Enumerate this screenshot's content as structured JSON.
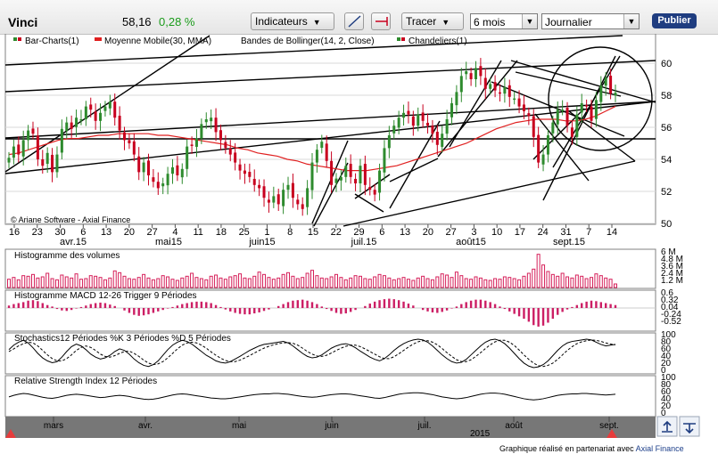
{
  "toolbar": {
    "stock_name": "Vinci",
    "price": "58,16",
    "change": "0,28 %",
    "change_color": "#1a9b1a",
    "indicators_label": "Indicateurs",
    "tracer_label": "Tracer",
    "period_value": "6 mois",
    "interval_value": "Journalier",
    "publish_label": "Publier"
  },
  "legend": {
    "bar_charts": "Bar-Charts(1)",
    "moving_average": "Moyenne Mobile(30, MMA)",
    "bollinger": "Bandes de Bollinger(14, 2, Close)",
    "candlesticks": "Chandeliers(1)",
    "copyright": "© Ariane Software - Axial Finance"
  },
  "colors": {
    "up": "#2e8b2e",
    "down": "#c8001e",
    "ma": "#e02020",
    "volume": "#d6205a",
    "macd": "#cc1e64",
    "grid": "#d8d8d8",
    "navigator_bg": "#777777",
    "navigator_marker": "#e63c3c"
  },
  "chart_data": [
    {
      "type": "candlestick",
      "title": "Vinci",
      "ylim": [
        50,
        61
      ],
      "y_ticks": [
        "60",
        "58",
        "56",
        "54",
        "52",
        "50"
      ],
      "x_day_ticks": [
        "16",
        "23",
        "30",
        "6",
        "13",
        "20",
        "27",
        "4",
        "11",
        "18",
        "25",
        "1",
        "8",
        "15",
        "22",
        "29",
        "6",
        "13",
        "20",
        "27",
        "3",
        "10",
        "17",
        "24",
        "31",
        "7",
        "14"
      ],
      "x_month_labels": [
        "avr.15",
        "mai15",
        "juin15",
        "juil.15",
        "août15",
        "sept.15"
      ],
      "close": [
        54.1,
        54.8,
        54.3,
        55.2,
        55.8,
        55.6,
        54.0,
        53.6,
        54.4,
        53.2,
        54.3,
        55.9,
        56.3,
        55.9,
        56.6,
        56.5,
        57.3,
        57.1,
        56.4,
        56.9,
        57.3,
        57.6,
        56.6,
        55.8,
        55.2,
        55.0,
        54.3,
        53.2,
        53.8,
        53.0,
        52.6,
        52.2,
        52.5,
        53.1,
        53.5,
        53.0,
        53.4,
        54.8,
        54.9,
        55.3,
        56.2,
        56.5,
        56.6,
        55.7,
        55.2,
        54.7,
        54.3,
        53.8,
        53.3,
        53.1,
        52.9,
        52.4,
        52.2,
        51.6,
        51.3,
        51.7,
        51.2,
        52.1,
        52.4,
        51.6,
        51.2,
        50.9,
        52.2,
        53.8,
        54.6,
        55.1,
        53.9,
        52.4,
        52.8,
        52.9,
        53.6,
        52.9,
        52.5,
        53.6,
        52.4,
        52.1,
        51.8,
        53.3,
        54.7,
        55.5,
        56.1,
        56.6,
        56.9,
        56.8,
        56.1,
        56.8,
        56.4,
        56.1,
        55.6,
        54.9,
        55.6,
        56.5,
        57.5,
        58.2,
        59.2,
        59.5,
        59.0,
        59.7,
        59.2,
        58.4,
        58.7,
        58.3,
        58.1,
        58.5,
        57.9,
        57.8,
        57.3,
        57.0,
        56.7,
        55.4,
        53.8,
        54.3,
        55.5,
        56.3,
        57.1,
        57.1,
        56.1,
        55.4,
        56.8,
        57.5,
        57.3,
        56.4,
        57.7,
        58.6,
        59.1,
        58.1,
        58.16
      ],
      "ma_30": [
        54.3,
        54.4,
        54.6,
        54.8,
        55.0,
        55.2,
        55.3,
        55.3,
        55.4,
        55.5,
        55.5,
        55.6,
        55.6,
        55.6,
        55.6,
        55.5,
        55.5,
        55.4,
        55.3,
        55.2,
        55.1,
        55.0,
        54.9,
        54.7,
        54.6,
        54.4,
        54.3,
        54.2,
        54.0,
        53.9,
        53.7,
        53.6,
        53.5,
        53.4,
        53.3,
        53.3,
        53.3,
        53.4,
        53.5,
        53.6,
        53.8,
        54.0,
        54.2,
        54.4,
        54.6,
        54.8,
        55.0,
        55.3,
        55.6,
        55.9,
        56.1,
        56.3,
        56.4,
        56.5,
        56.5,
        56.5,
        56.4,
        56.4,
        56.5,
        56.7,
        57.0,
        57.3
      ]
    },
    {
      "type": "bar",
      "title": "Histogramme des volumes",
      "y_ticks": [
        "6 M",
        "4.8 M",
        "3.6 M",
        "2.4 M",
        "1.2 M"
      ],
      "values": [
        1.4,
        1.7,
        1.3,
        2.0,
        1.9,
        2.2,
        1.6,
        1.8,
        2.4,
        1.5,
        1.3,
        2.1,
        1.8,
        1.6,
        2.3,
        1.4,
        1.5,
        2.0,
        1.9,
        1.7,
        1.3,
        1.6,
        2.8,
        2.5,
        1.9,
        1.5,
        1.4,
        1.7,
        2.2,
        1.6,
        1.3,
        1.5,
        2.0,
        1.8,
        1.4,
        1.2,
        1.6,
        1.9,
        2.4,
        1.7,
        1.5,
        1.3,
        1.9,
        2.1,
        1.6,
        1.4,
        1.8,
        2.0,
        2.3,
        1.6,
        1.5,
        1.9,
        2.6,
        2.2,
        1.7,
        1.4,
        1.6,
        2.2,
        2.5,
        1.9,
        1.5,
        1.7,
        2.4,
        2.9,
        2.0,
        1.6,
        1.5,
        1.8,
        2.2,
        1.7,
        1.3,
        1.6,
        2.0,
        1.9,
        1.5,
        1.4,
        1.8,
        2.2,
        2.0,
        1.6,
        1.3,
        1.5,
        1.7,
        1.4,
        1.2,
        1.6,
        1.9,
        1.5,
        1.3,
        1.8,
        2.3,
        2.1,
        1.7,
        2.6,
        2.0,
        1.5,
        1.4,
        1.8,
        1.6,
        1.3,
        1.2,
        1.5,
        1.4,
        1.8,
        1.7,
        1.5,
        1.3,
        1.9,
        2.4,
        3.1,
        5.6,
        3.8,
        2.7,
        2.2,
        1.9,
        2.4,
        1.8,
        1.6,
        2.1,
        1.9,
        1.5,
        1.7,
        2.3,
        2.0,
        1.6,
        1.4,
        0.6
      ]
    },
    {
      "type": "bar",
      "title": "Histogramme MACD 12-26   Trigger 9 Périodes",
      "y_ticks": [
        "0.6",
        "0.32",
        "0.04",
        "-0.24",
        "-0.52"
      ],
      "values": [
        0.05,
        0.08,
        0.1,
        0.12,
        0.15,
        0.16,
        0.14,
        0.1,
        0.06,
        0.03,
        -0.02,
        -0.05,
        -0.06,
        -0.04,
        -0.01,
        0.02,
        0.05,
        0.08,
        0.1,
        0.11,
        0.1,
        0.07,
        0.04,
        0.0,
        -0.05,
        -0.1,
        -0.14,
        -0.16,
        -0.15,
        -0.13,
        -0.1,
        -0.07,
        -0.04,
        -0.01,
        0.02,
        0.05,
        0.08,
        0.1,
        0.12,
        0.13,
        0.13,
        0.12,
        0.1,
        0.06,
        0.02,
        -0.03,
        -0.07,
        -0.1,
        -0.12,
        -0.13,
        -0.13,
        -0.11,
        -0.09,
        -0.06,
        -0.03,
        0.0,
        0.04,
        0.08,
        0.12,
        0.15,
        0.16,
        0.17,
        0.15,
        0.12,
        0.08,
        0.03,
        -0.02,
        -0.06,
        -0.1,
        -0.12,
        -0.11,
        -0.08,
        -0.04,
        0.0,
        0.04,
        0.09,
        0.13,
        0.16,
        0.18,
        0.19,
        0.18,
        0.16,
        0.13,
        0.09,
        0.05,
        0.0,
        -0.04,
        -0.07,
        -0.09,
        -0.1,
        -0.08,
        -0.05,
        -0.01,
        0.03,
        0.08,
        0.12,
        0.15,
        0.17,
        0.17,
        0.15,
        0.12,
        0.08,
        0.03,
        -0.02,
        -0.07,
        -0.12,
        -0.17,
        -0.22,
        -0.28,
        -0.35,
        -0.38,
        -0.36,
        -0.3,
        -0.22,
        -0.14,
        -0.08,
        -0.03,
        0.02,
        0.06,
        0.1,
        0.13,
        0.15,
        0.14,
        0.12,
        0.1,
        0.08,
        0.06
      ]
    },
    {
      "type": "line",
      "title": "Stochastics12 Périodes    %K 3 Périodes    %D 5 Périodes",
      "y_ticks": [
        "100",
        "80",
        "60",
        "40",
        "20",
        "0"
      ],
      "ylim": [
        0,
        100
      ],
      "series": [
        {
          "name": "%K",
          "values": [
            60,
            72,
            80,
            85,
            78,
            65,
            50,
            38,
            30,
            25,
            28,
            40,
            55,
            68,
            75,
            70,
            60,
            48,
            40,
            35,
            38,
            45,
            55,
            62,
            58,
            48,
            35,
            25,
            18,
            15,
            20,
            30,
            45,
            60,
            72,
            80,
            85,
            82,
            75,
            65,
            55,
            45,
            38,
            30,
            26,
            24,
            28,
            35,
            42,
            50,
            58,
            64,
            70,
            74,
            76,
            78,
            80,
            82,
            78,
            70,
            60,
            50,
            42,
            38,
            40,
            46,
            55,
            64,
            70,
            74,
            76,
            72,
            65,
            56,
            48,
            40,
            34,
            30,
            36,
            46,
            58,
            68,
            76,
            82,
            86,
            88,
            86,
            80,
            70,
            58,
            46,
            36,
            28,
            24,
            26,
            34,
            46,
            58,
            70,
            80,
            86,
            88,
            84,
            76,
            64,
            50,
            36,
            24,
            16,
            12,
            14,
            20,
            30,
            44,
            58,
            70,
            78,
            82,
            84,
            86,
            88,
            86,
            80,
            74,
            70,
            72,
            74
          ]
        },
        {
          "name": "%D",
          "values": [
            55,
            62,
            70,
            76,
            80,
            78,
            70,
            58,
            46,
            36,
            30,
            30,
            36,
            46,
            58,
            66,
            70,
            66,
            58,
            48,
            42,
            40,
            44,
            50,
            55,
            56,
            50,
            42,
            32,
            24,
            20,
            22,
            28,
            38,
            50,
            62,
            72,
            78,
            80,
            78,
            72,
            64,
            54,
            45,
            37,
            31,
            28,
            28,
            32,
            38,
            44,
            51,
            58,
            64,
            69,
            73,
            76,
            78,
            79,
            77,
            72,
            64,
            55,
            48,
            43,
            42,
            45,
            51,
            58,
            64,
            69,
            72,
            72,
            68,
            62,
            55,
            48,
            41,
            36,
            36,
            41,
            49,
            58,
            67,
            75,
            81,
            84,
            84,
            80,
            73,
            63,
            52,
            42,
            33,
            28,
            28,
            33,
            42,
            52,
            63,
            73,
            81,
            85,
            85,
            80,
            71,
            59,
            46,
            34,
            24,
            17,
            15,
            18,
            24,
            34,
            46,
            58,
            68,
            76,
            81,
            84,
            86,
            85,
            82,
            78,
            75,
            73
          ]
        }
      ]
    },
    {
      "type": "line",
      "title": "Relative Strength Index 12 Périodes",
      "y_ticks": [
        "100",
        "80",
        "60",
        "40",
        "20",
        "0"
      ],
      "ylim": [
        0,
        100
      ],
      "series": [
        {
          "name": "RSI",
          "values": [
            48,
            52,
            55,
            57,
            56,
            53,
            50,
            47,
            45,
            44,
            46,
            49,
            52,
            54,
            55,
            54,
            52,
            50,
            48,
            46,
            47,
            49,
            51,
            52,
            51,
            49,
            46,
            44,
            42,
            41,
            42,
            44,
            47,
            50,
            53,
            55,
            56,
            55,
            53,
            51,
            49,
            47,
            45,
            44,
            43,
            43,
            44,
            46,
            48,
            50,
            52,
            54,
            55,
            56,
            56,
            57,
            57,
            56,
            55,
            53,
            51,
            49,
            48,
            47,
            48,
            50,
            52,
            54,
            55,
            56,
            56,
            55,
            53,
            51,
            49,
            47,
            45,
            44,
            46,
            49,
            52,
            55,
            57,
            58,
            59,
            59,
            58,
            56,
            54,
            51,
            48,
            46,
            44,
            43,
            44,
            46,
            49,
            52,
            55,
            57,
            58,
            58,
            57,
            55,
            52,
            49,
            46,
            43,
            41,
            40,
            41,
            43,
            46,
            49,
            52,
            54,
            55,
            56,
            56,
            57,
            57,
            56,
            55,
            54,
            53,
            54,
            55
          ]
        }
      ]
    }
  ],
  "navigator": {
    "months": [
      "mars",
      "avr.",
      "mai",
      "juin",
      "juil.",
      "août",
      "sept."
    ],
    "year": "2015"
  },
  "footer": {
    "note": "Graphique réalisé en partenariat avec",
    "partner": "Axial Finance"
  }
}
